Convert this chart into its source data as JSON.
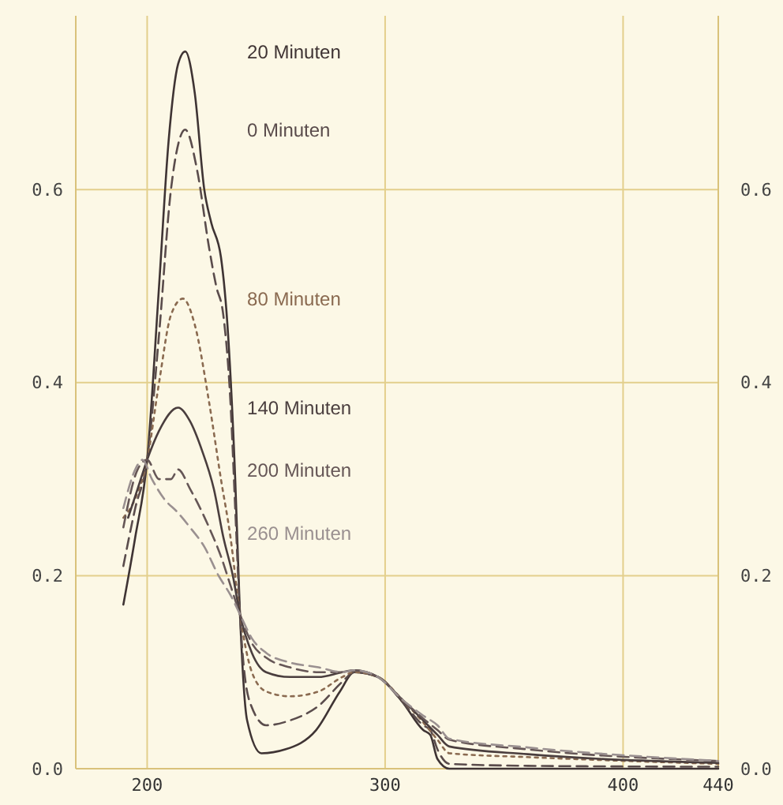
{
  "chart_data": {
    "type": "line",
    "xlim": [
      170,
      440
    ],
    "xticks": [
      200,
      300,
      400,
      440
    ],
    "ylim": [
      0,
      0.78
    ],
    "yticks": [
      {
        "value": 0,
        "label": "0.0"
      },
      0.2,
      0.4,
      0.6
    ],
    "y2lim": [
      0,
      0.78
    ],
    "y2ticks": [
      {
        "value": 0,
        "label": "0.0"
      },
      0.2,
      0.4,
      0.6
    ],
    "grid": true,
    "series": [
      {
        "name": "20 Minuten",
        "color": "#3f3434",
        "line_style": "solid",
        "x": [
          190,
          195,
          200,
          205,
          209,
          213,
          216,
          220,
          224,
          227,
          231,
          234,
          237,
          239,
          242,
          248,
          258,
          271,
          281,
          287,
          297,
          307,
          316,
          319,
          322,
          327,
          357,
          440
        ],
        "values": [
          0.17,
          0.24,
          0.32,
          0.5,
          0.65,
          0.73,
          0.743,
          0.7,
          0.6,
          0.565,
          0.53,
          0.45,
          0.3,
          0.16,
          0.05,
          0.016,
          0.02,
          0.04,
          0.08,
          0.1,
          0.095,
          0.07,
          0.04,
          0.035,
          0.01,
          0,
          0,
          0
        ]
      },
      {
        "name": "0 Minuten",
        "color": "#5a4c4c",
        "line_style": "dashed",
        "x": [
          190,
          195,
          200,
          205,
          210,
          216,
          221,
          226,
          229,
          232,
          235,
          237,
          239,
          243,
          250,
          260,
          272,
          282,
          287,
          297,
          307,
          316,
          319,
          322,
          327,
          360,
          440
        ],
        "values": [
          0.21,
          0.27,
          0.32,
          0.45,
          0.6,
          0.662,
          0.62,
          0.54,
          0.5,
          0.47,
          0.38,
          0.27,
          0.16,
          0.07,
          0.045,
          0.05,
          0.065,
          0.09,
          0.1,
          0.095,
          0.07,
          0.045,
          0.04,
          0.02,
          0.005,
          0.003,
          0.002
        ]
      },
      {
        "name": "80 Minuten",
        "color": "#8a6a50",
        "line_style": "dotted",
        "x": [
          190,
          195,
          200,
          205,
          210,
          215,
          220,
          226,
          231,
          235,
          239,
          244,
          250,
          260,
          272,
          282,
          287,
          297,
          307,
          316,
          322,
          327,
          360,
          440
        ],
        "values": [
          0.26,
          0.28,
          0.32,
          0.4,
          0.47,
          0.487,
          0.46,
          0.38,
          0.3,
          0.24,
          0.16,
          0.1,
          0.08,
          0.075,
          0.08,
          0.095,
          0.1,
          0.095,
          0.072,
          0.048,
          0.03,
          0.016,
          0.012,
          0.005
        ]
      },
      {
        "name": "140 Minuten",
        "color": "#4a3e3e",
        "line_style": "solid",
        "x": [
          192,
          196,
          200,
          205,
          213,
          218,
          223,
          228,
          232,
          236,
          239,
          244,
          250,
          260,
          272,
          282,
          287,
          297,
          307,
          316,
          322,
          327,
          360,
          440
        ],
        "values": [
          0.26,
          0.29,
          0.32,
          0.35,
          0.374,
          0.36,
          0.33,
          0.29,
          0.24,
          0.2,
          0.16,
          0.12,
          0.1,
          0.095,
          0.095,
          0.1,
          0.102,
          0.095,
          0.072,
          0.05,
          0.035,
          0.023,
          0.015,
          0.006
        ]
      },
      {
        "name": "200 Minuten",
        "color": "#655656",
        "line_style": "dashed",
        "x": [
          190,
          196,
          200,
          205,
          210,
          213,
          218,
          226,
          231,
          235,
          239,
          244,
          250,
          260,
          272,
          282,
          287,
          297,
          307,
          316,
          322,
          327,
          360,
          440
        ],
        "values": [
          0.25,
          0.31,
          0.32,
          0.3,
          0.3,
          0.31,
          0.29,
          0.25,
          0.22,
          0.19,
          0.16,
          0.13,
          0.115,
          0.105,
          0.1,
          0.1,
          0.102,
          0.095,
          0.072,
          0.052,
          0.04,
          0.03,
          0.02,
          0.008
        ]
      },
      {
        "name": "260 Minuten",
        "color": "#9a9090",
        "line_style": "dashed",
        "x": [
          190,
          195,
          198,
          202,
          207,
          213,
          218,
          224,
          230,
          235,
          239,
          244,
          250,
          260,
          272,
          282,
          287,
          297,
          307,
          316,
          322,
          327,
          360,
          440
        ],
        "values": [
          0.27,
          0.31,
          0.32,
          0.3,
          0.28,
          0.265,
          0.25,
          0.23,
          0.2,
          0.18,
          0.16,
          0.135,
          0.12,
          0.11,
          0.105,
          0.1,
          0.102,
          0.095,
          0.072,
          0.055,
          0.045,
          0.031,
          0.022,
          0.008
        ]
      }
    ]
  }
}
